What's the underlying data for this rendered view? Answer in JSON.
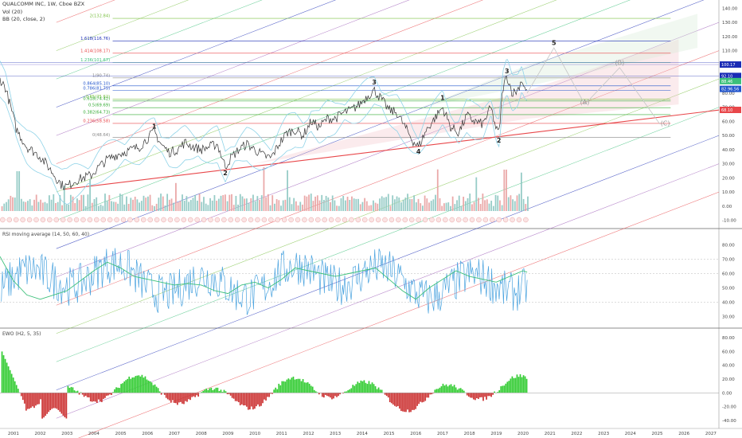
{
  "header": {
    "symbol_line": "QUALCOMM INC, 1W, Cboe BZX",
    "vol_label": "Vol (20)",
    "bb_label": "BB (20, close, 2)"
  },
  "panels": {
    "rsi_title": "RSI moving average (14, 50, 60, 40)",
    "ewo_title": "EWO (H2, 5, 35)"
  },
  "colors": {
    "price": "#333333",
    "bb": "#8fd3e8",
    "rsi": "#4aa3df",
    "rsi_ma": "#3cc07a",
    "ewo_up": "#33cc33",
    "ewo_down": "#cc3333",
    "trend": "#e8474a",
    "label_red": "#e8474a"
  },
  "chart_data": [
    {
      "type": "line",
      "title": "QUALCOMM INC, 1W, Cboe BZX",
      "x_labels": [
        "2001",
        "2002",
        "2003",
        "2004",
        "2005",
        "2006",
        "2007",
        "2008",
        "2009",
        "2010",
        "2011",
        "2012",
        "2013",
        "2014",
        "2015",
        "2016",
        "2017",
        "2018",
        "2019",
        "2020",
        "2021",
        "2022",
        "2023",
        "2024",
        "2025",
        "2026",
        "2027"
      ],
      "x_range": [
        2000.5,
        2027.3
      ],
      "y_ticks": [
        "140.00",
        "130.00",
        "120.00",
        "110.00",
        "100.00",
        "90.00",
        "80.00",
        "70.00",
        "60.00",
        "50.00",
        "40.00",
        "30.00",
        "20.00",
        "10.00",
        "0.00",
        "-10.00"
      ],
      "ylim": [
        -13,
        143
      ],
      "price_labels": [
        "100.17",
        "92.10",
        "88.46",
        "82.96.56",
        "68.10"
      ],
      "fib_levels": [
        {
          "label": "2(132.84)",
          "value": 132.84,
          "color": "#7bc043"
        },
        {
          "label": "1.618(116.76)",
          "value": 116.76,
          "color": "#1a2bb5"
        },
        {
          "label": "1.414(108.17)",
          "value": 108.17,
          "color": "#e8474a"
        },
        {
          "label": "1.236(101.67)",
          "value": 101.67,
          "color": "#3cc07a"
        },
        {
          "label": "1(90.74)",
          "value": 90.74,
          "color": "#888888"
        },
        {
          "label": "0.864(85.10)",
          "value": 85.1,
          "color": "#2255cc"
        },
        {
          "label": "0.786(81.75)",
          "value": 81.75,
          "color": "#2255cc"
        },
        {
          "label": "0.65(75.62)",
          "value": 75.62,
          "color": "#7bc043"
        },
        {
          "label": "0.618(74.42)",
          "value": 74.42,
          "color": "#33aa33"
        },
        {
          "label": "0.5(69.69)",
          "value": 69.69,
          "color": "#33aa33"
        },
        {
          "label": "0.382(64.73)",
          "value": 64.73,
          "color": "#33aa33"
        },
        {
          "label": "0.236(58.58)",
          "value": 58.58,
          "color": "#e8474a"
        },
        {
          "label": "0(48.64)",
          "value": 48.64,
          "color": "#888888"
        }
      ],
      "wave_labels": [
        {
          "text": "1",
          "x": 2006.25,
          "y": 55
        },
        {
          "text": "2",
          "x": 2008.9,
          "y": 22
        },
        {
          "text": "3",
          "x": 2014.45,
          "y": 86
        },
        {
          "text": "4",
          "x": 2016.1,
          "y": 37
        },
        {
          "text": "1",
          "x": 2017.0,
          "y": 75
        },
        {
          "text": "2",
          "x": 2019.1,
          "y": 45
        },
        {
          "text": "3",
          "x": 2019.4,
          "y": 94
        },
        {
          "text": "5",
          "x": 2021.15,
          "y": 114
        },
        {
          "text": "(A)",
          "x": 2022.3,
          "y": 72
        },
        {
          "text": "(B)",
          "x": 2023.6,
          "y": 100
        },
        {
          "text": "(C)",
          "x": 2025.3,
          "y": 57
        }
      ],
      "price_series": [
        [
          2000.5,
          90
        ],
        [
          2000.7,
          84
        ],
        [
          2000.9,
          70
        ],
        [
          2001.1,
          55
        ],
        [
          2001.3,
          48
        ],
        [
          2001.5,
          42
        ],
        [
          2001.8,
          38
        ],
        [
          2002.0,
          35
        ],
        [
          2002.3,
          28
        ],
        [
          2002.6,
          20
        ],
        [
          2002.8,
          15
        ],
        [
          2003.0,
          14
        ],
        [
          2003.3,
          18
        ],
        [
          2003.6,
          20
        ],
        [
          2003.9,
          22
        ],
        [
          2004.2,
          28
        ],
        [
          2004.5,
          33
        ],
        [
          2004.8,
          36
        ],
        [
          2005.1,
          38
        ],
        [
          2005.4,
          40
        ],
        [
          2005.7,
          42
        ],
        [
          2006.0,
          48
        ],
        [
          2006.25,
          53
        ],
        [
          2006.5,
          44
        ],
        [
          2006.8,
          38
        ],
        [
          2007.1,
          40
        ],
        [
          2007.4,
          45
        ],
        [
          2007.7,
          42
        ],
        [
          2008.0,
          40
        ],
        [
          2008.3,
          42
        ],
        [
          2008.6,
          44
        ],
        [
          2008.9,
          28
        ],
        [
          2009.1,
          34
        ],
        [
          2009.4,
          40
        ],
        [
          2009.7,
          44
        ],
        [
          2010.0,
          40
        ],
        [
          2010.3,
          36
        ],
        [
          2010.6,
          34
        ],
        [
          2010.9,
          44
        ],
        [
          2011.2,
          52
        ],
        [
          2011.5,
          54
        ],
        [
          2011.8,
          50
        ],
        [
          2012.1,
          60
        ],
        [
          2012.4,
          56
        ],
        [
          2012.7,
          62
        ],
        [
          2013.0,
          62
        ],
        [
          2013.3,
          66
        ],
        [
          2013.6,
          68
        ],
        [
          2013.9,
          72
        ],
        [
          2014.2,
          78
        ],
        [
          2014.45,
          82
        ],
        [
          2014.7,
          76
        ],
        [
          2015.0,
          68
        ],
        [
          2015.3,
          66
        ],
        [
          2015.6,
          56
        ],
        [
          2015.9,
          46
        ],
        [
          2016.1,
          42
        ],
        [
          2016.4,
          54
        ],
        [
          2016.7,
          62
        ],
        [
          2017.0,
          70
        ],
        [
          2017.3,
          56
        ],
        [
          2017.6,
          52
        ],
        [
          2017.9,
          64
        ],
        [
          2018.2,
          60
        ],
        [
          2018.5,
          58
        ],
        [
          2018.8,
          70
        ],
        [
          2019.0,
          54
        ],
        [
          2019.1,
          52
        ],
        [
          2019.25,
          84
        ],
        [
          2019.4,
          92
        ],
        [
          2019.6,
          80
        ],
        [
          2019.8,
          82
        ],
        [
          2019.95,
          90
        ],
        [
          2020.05,
          84
        ],
        [
          2020.15,
          80
        ]
      ],
      "projection": [
        [
          2020.15,
          80
        ],
        [
          2021.15,
          112
        ],
        [
          2022.3,
          72
        ],
        [
          2023.6,
          98
        ],
        [
          2025.1,
          58
        ]
      ]
    },
    {
      "type": "line",
      "title": "RSI moving average (14, 50, 60, 40)",
      "y_ticks": [
        "80.00",
        "70.00",
        "60.00",
        "50.00",
        "40.00",
        "30.00"
      ],
      "ylim": [
        24,
        86
      ],
      "rsi_ma": [
        [
          2000.5,
          72
        ],
        [
          2001.0,
          55
        ],
        [
          2001.5,
          45
        ],
        [
          2002.0,
          42
        ],
        [
          2002.5,
          45
        ],
        [
          2003.0,
          48
        ],
        [
          2003.5,
          55
        ],
        [
          2004.0,
          62
        ],
        [
          2004.5,
          68
        ],
        [
          2005.0,
          64
        ],
        [
          2005.5,
          58
        ],
        [
          2006.0,
          56
        ],
        [
          2006.5,
          54
        ],
        [
          2007.0,
          52
        ],
        [
          2007.5,
          53
        ],
        [
          2008.0,
          52
        ],
        [
          2008.5,
          48
        ],
        [
          2009.0,
          46
        ],
        [
          2009.5,
          52
        ],
        [
          2010.0,
          54
        ],
        [
          2010.5,
          50
        ],
        [
          2011.0,
          56
        ],
        [
          2011.5,
          64
        ],
        [
          2012.0,
          62
        ],
        [
          2012.5,
          60
        ],
        [
          2013.0,
          58
        ],
        [
          2013.5,
          60
        ],
        [
          2014.0,
          62
        ],
        [
          2014.5,
          64
        ],
        [
          2015.0,
          56
        ],
        [
          2015.5,
          48
        ],
        [
          2016.0,
          42
        ],
        [
          2016.5,
          50
        ],
        [
          2017.0,
          56
        ],
        [
          2017.5,
          62
        ],
        [
          2018.0,
          58
        ],
        [
          2018.5,
          56
        ],
        [
          2019.0,
          54
        ],
        [
          2019.5,
          58
        ],
        [
          2020.0,
          62
        ],
        [
          2020.15,
          61
        ]
      ]
    },
    {
      "type": "bar",
      "title": "EWO (H2, 5, 35)",
      "y_ticks": [
        "80.00",
        "60.00",
        "40.00",
        "20.00",
        "0.00",
        "-20.00",
        "-40.00"
      ],
      "ylim": [
        -47,
        87
      ]
    }
  ]
}
